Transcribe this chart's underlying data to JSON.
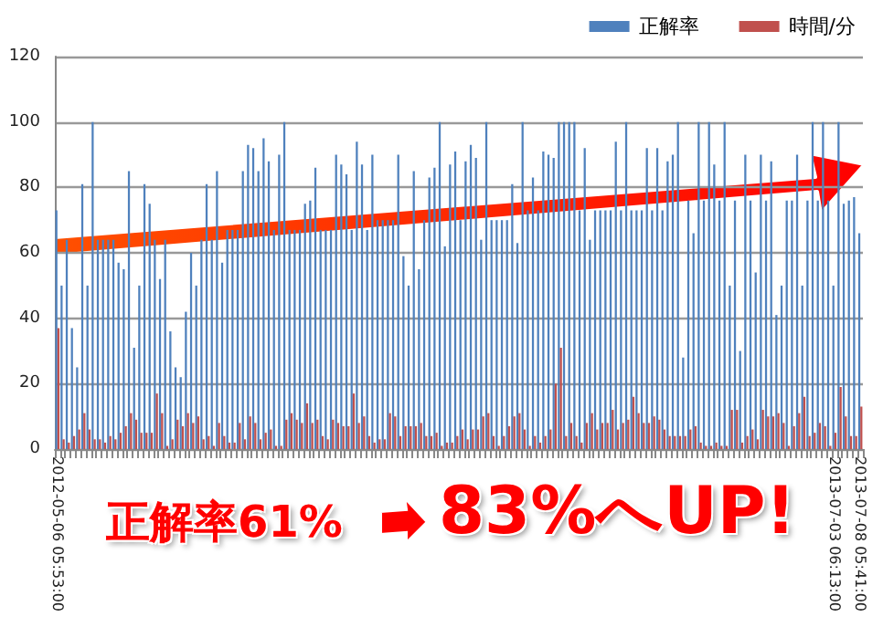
{
  "chart_data": {
    "type": "bar",
    "categories": [
      "2012-05-06 05:53:00",
      null,
      null,
      null,
      null,
      null,
      null,
      null,
      null,
      null,
      null,
      null,
      null,
      null,
      null,
      null,
      null,
      null,
      null,
      null,
      null,
      null,
      null,
      null,
      null,
      null,
      null,
      null,
      null,
      null,
      null,
      null,
      null,
      null,
      null,
      null,
      null,
      null,
      null,
      null,
      null,
      null,
      null,
      null,
      null,
      null,
      null,
      null,
      null,
      null,
      null,
      null,
      null,
      null,
      null,
      null,
      null,
      null,
      null,
      null,
      null,
      null,
      null,
      null,
      null,
      null,
      null,
      null,
      null,
      null,
      null,
      null,
      null,
      null,
      null,
      null,
      null,
      null,
      null,
      null,
      null,
      null,
      null,
      null,
      null,
      null,
      null,
      null,
      null,
      null,
      null,
      null,
      null,
      null,
      null,
      null,
      null,
      null,
      null,
      null,
      null,
      null,
      null,
      null,
      null,
      null,
      null,
      null,
      null,
      null,
      null,
      null,
      null,
      null,
      null,
      null,
      null,
      null,
      null,
      null,
      null,
      null,
      null,
      null,
      null,
      null,
      null,
      null,
      null,
      null,
      null,
      null,
      null,
      null,
      null,
      null,
      null,
      null,
      null,
      null,
      null,
      null,
      null,
      null,
      null,
      null,
      null,
      null,
      null,
      null,
      "2013-07-03 06:13:00",
      null,
      null,
      null,
      null,
      "2013-07-08 05:41:00"
    ],
    "series": [
      {
        "name": "正解率",
        "color": "#4f81bd",
        "values": [
          73,
          50,
          64,
          37,
          25,
          81,
          50,
          100,
          64,
          64,
          64,
          64,
          57,
          55,
          85,
          31,
          50,
          81,
          75,
          64,
          52,
          64,
          36,
          25,
          22,
          42,
          60,
          50,
          64,
          81,
          64,
          85,
          57,
          67,
          67,
          67,
          85,
          93,
          92,
          85,
          95,
          88,
          67,
          90,
          100,
          67,
          67,
          67,
          75,
          76,
          86,
          67,
          67,
          67,
          90,
          87,
          84,
          67,
          94,
          87,
          67,
          90,
          70,
          70,
          70,
          70,
          90,
          59,
          50,
          85,
          55,
          70,
          83,
          86,
          100,
          62,
          87,
          91,
          70,
          88,
          93,
          89,
          64,
          100,
          70,
          70,
          70,
          70,
          81,
          63,
          100,
          73,
          83,
          73,
          91,
          90,
          89,
          100,
          100,
          100,
          100,
          73,
          92,
          64,
          73,
          73,
          73,
          73,
          94,
          73,
          100,
          73,
          73,
          73,
          92,
          73,
          92,
          73,
          88,
          90,
          100,
          28,
          76,
          66,
          100,
          76,
          100,
          87,
          76,
          100,
          50,
          76,
          30,
          90,
          76,
          54,
          90,
          76,
          88,
          41,
          50,
          76,
          76,
          90,
          50,
          76,
          100,
          76,
          100,
          76,
          50,
          100,
          75,
          76,
          77,
          66
        ]
      },
      {
        "name": "時間/分",
        "color": "#c0504d",
        "values": [
          37,
          3,
          2,
          4,
          6,
          11,
          6,
          3,
          3,
          2,
          4,
          3,
          5,
          7,
          11,
          9,
          5,
          5,
          5,
          17,
          11,
          1,
          3,
          9,
          7,
          11,
          8,
          10,
          3,
          4,
          1,
          8,
          4,
          2,
          2,
          8,
          3,
          10,
          8,
          3,
          5,
          6,
          1,
          1,
          9,
          11,
          9,
          8,
          14,
          8,
          9,
          4,
          3,
          9,
          8,
          7,
          7,
          17,
          8,
          10,
          4,
          2,
          3,
          3,
          11,
          10,
          4,
          7,
          7,
          7,
          8,
          4,
          4,
          5,
          1,
          2,
          2,
          4,
          6,
          3,
          6,
          6,
          10,
          11,
          4,
          1,
          4,
          7,
          10,
          11,
          6,
          1,
          4,
          2,
          4,
          6,
          20,
          31,
          4,
          8,
          4,
          2,
          8,
          11,
          6,
          8,
          8,
          12,
          6,
          8,
          9,
          16,
          11,
          8,
          8,
          10,
          9,
          6,
          4,
          4,
          4,
          4,
          6,
          7,
          2,
          1,
          1,
          2,
          1,
          1,
          12,
          12,
          2,
          4,
          6,
          3,
          12,
          10,
          10,
          11,
          8,
          1,
          7,
          11,
          16,
          4,
          5,
          8,
          7,
          1,
          5,
          19,
          10,
          4,
          4,
          13
        ]
      }
    ],
    "ylim": [
      0,
      120
    ],
    "yticks": [
      0,
      20,
      40,
      60,
      80,
      100,
      120
    ],
    "grid": "y",
    "legend": "top right",
    "annotations": [
      "正解率61%",
      "83%へUP!"
    ]
  }
}
